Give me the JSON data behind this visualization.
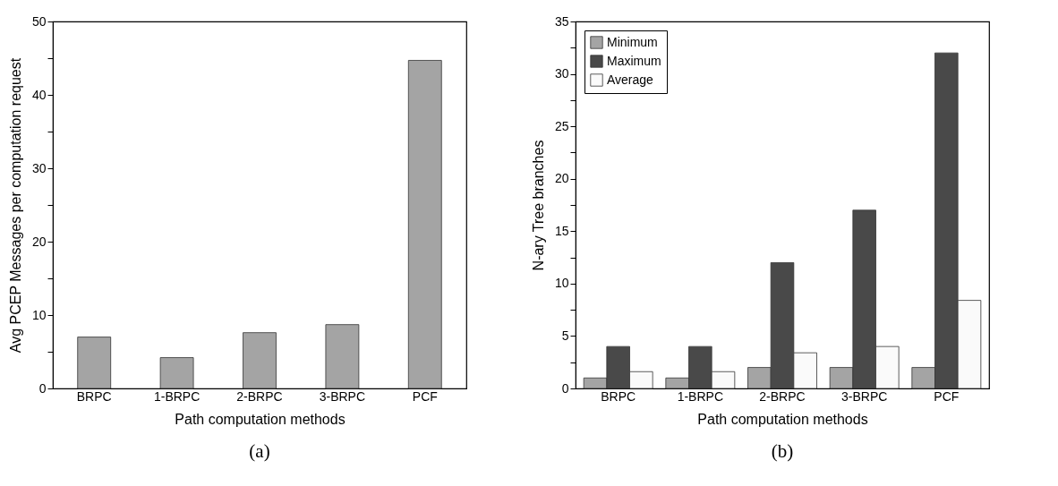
{
  "chart_data": [
    {
      "type": "bar",
      "categories": [
        "BRPC",
        "1-BRPC",
        "2-BRPC",
        "3-BRPC",
        "PCF"
      ],
      "values": [
        7.0,
        4.2,
        7.6,
        8.7,
        44.7
      ],
      "color": "#a4a4a4",
      "xlabel": "Path computation methods",
      "ylabel": "Avg PCEP Messages per computation request",
      "ylim": [
        0,
        50
      ],
      "yticks": [
        0,
        {
          "value": 5,
          "label": null
        },
        10,
        {
          "value": 15,
          "label": null
        },
        20,
        {
          "value": 25,
          "label": null
        },
        30,
        {
          "value": 35,
          "label": null
        },
        40,
        {
          "value": 45,
          "label": null
        },
        50
      ],
      "annotations": [
        "(a)"
      ]
    },
    {
      "type": "bar",
      "categories": [
        "BRPC",
        "1-BRPC",
        "2-BRPC",
        "3-BRPC",
        "PCF"
      ],
      "series": [
        {
          "name": "Minimum",
          "color": "#a4a4a4",
          "values": [
            1.0,
            1.0,
            2.0,
            2.0,
            2.0
          ]
        },
        {
          "name": "Maximum",
          "color": "#494949",
          "values": [
            4,
            4,
            12,
            17,
            32
          ]
        },
        {
          "name": "Average",
          "color": "#fafafa",
          "values": [
            1.6,
            1.6,
            3.4,
            4.0,
            8.4
          ]
        }
      ],
      "xlabel": "Path computation methods",
      "ylabel": "N-ary Tree branches",
      "ylim": [
        0,
        35
      ],
      "yticks": [
        0,
        {
          "value": 2.5,
          "label": null
        },
        5,
        {
          "value": 7.5,
          "label": null
        },
        10,
        {
          "value": 12.5,
          "label": null
        },
        15,
        {
          "value": 17.5,
          "label": null
        },
        20,
        {
          "value": 22.5,
          "label": null
        },
        25,
        {
          "value": 27.5,
          "label": null
        },
        30,
        {
          "value": 32.5,
          "label": null
        },
        35
      ],
      "legend": "top left",
      "annotations": [
        "(b)"
      ]
    }
  ]
}
